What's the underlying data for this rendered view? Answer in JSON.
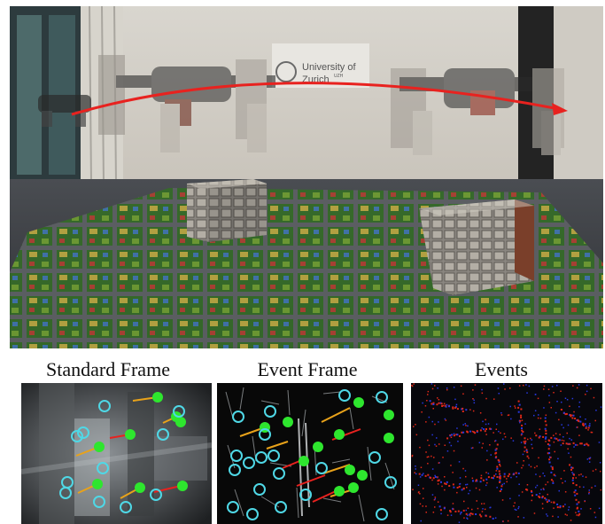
{
  "main_photo": {
    "sign_text_line1": "University of",
    "sign_text_line2": "Zurich",
    "sign_text_superscript": "UZH"
  },
  "panels": [
    {
      "caption": "Standard Frame"
    },
    {
      "caption": "Event Frame"
    },
    {
      "caption": "Events"
    }
  ],
  "colors": {
    "trajectory_arrow": "#e8221f",
    "feature_tracked": "#2ee62e",
    "feature_candidate": "#4fd8e6",
    "flow_track": "#e8a21a",
    "event_positive": "#e02818",
    "event_negative": "#2838e0"
  }
}
